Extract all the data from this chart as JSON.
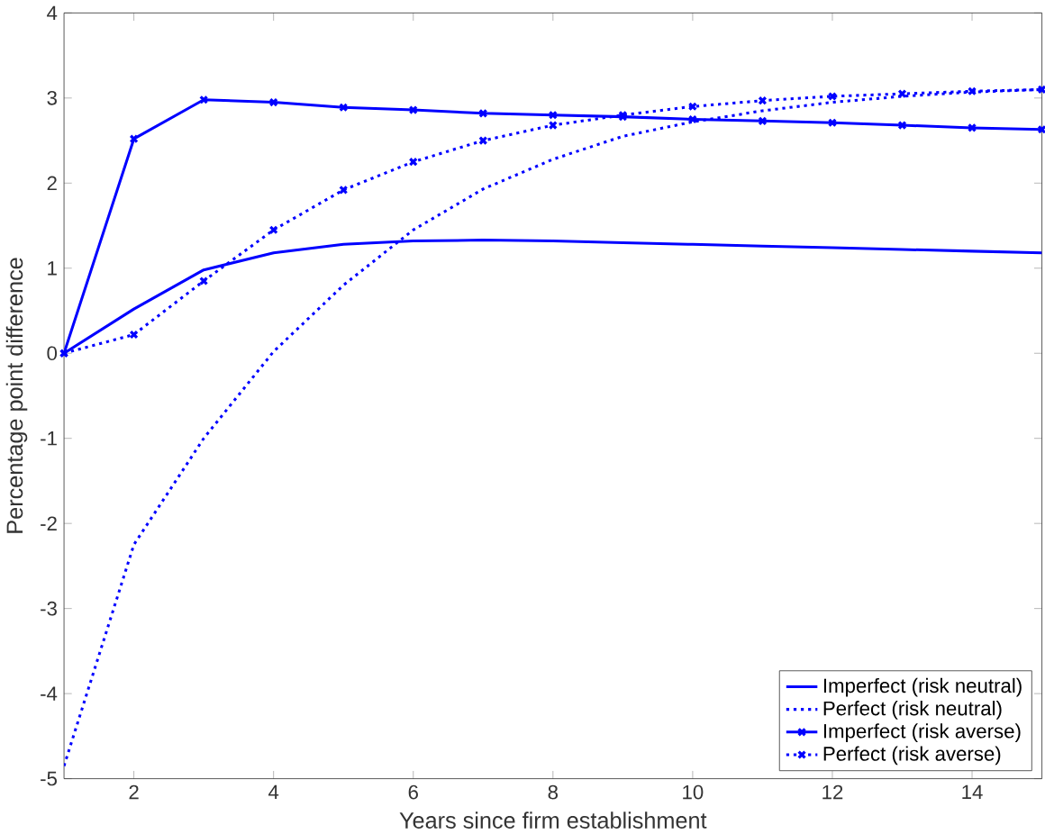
{
  "chart_data": {
    "type": "line",
    "xlabel": "Years since firm establishment",
    "ylabel": "Percentage point difference",
    "x": [
      1,
      2,
      3,
      4,
      5,
      6,
      7,
      8,
      9,
      10,
      11,
      12,
      13,
      14,
      15
    ],
    "xlim": [
      1,
      15
    ],
    "xticks": [
      2,
      4,
      6,
      8,
      10,
      12,
      14
    ],
    "ylim": [
      -5,
      4
    ],
    "yticks": [
      -5,
      -4,
      -3,
      -2,
      -1,
      0,
      1,
      2,
      3,
      4
    ],
    "grid": false,
    "legend": "bottom right",
    "series": [
      {
        "name": "Imperfect (risk neutral)",
        "color": "#0000ff",
        "line_style": "solid",
        "marker": "none",
        "values": [
          0,
          0.52,
          0.98,
          1.18,
          1.28,
          1.32,
          1.33,
          1.32,
          1.3,
          1.28,
          1.26,
          1.24,
          1.22,
          1.2,
          1.18
        ]
      },
      {
        "name": "Perfect (risk neutral)",
        "color": "#0000ff",
        "line_style": "dotted",
        "marker": "none",
        "values": [
          -4.85,
          -2.25,
          -1.0,
          0.02,
          0.8,
          1.45,
          1.93,
          2.28,
          2.55,
          2.72,
          2.85,
          2.95,
          3.02,
          3.07,
          3.1
        ]
      },
      {
        "name": "Imperfect (risk averse)",
        "color": "#0000ff",
        "line_style": "solid",
        "marker": "cross",
        "values": [
          0,
          2.52,
          2.98,
          2.95,
          2.89,
          2.86,
          2.82,
          2.8,
          2.78,
          2.75,
          2.73,
          2.71,
          2.68,
          2.65,
          2.63
        ]
      },
      {
        "name": "Perfect (risk averse)",
        "color": "#0000ff",
        "line_style": "dotted",
        "marker": "cross",
        "values": [
          0,
          0.22,
          0.85,
          1.45,
          1.92,
          2.25,
          2.5,
          2.68,
          2.8,
          2.9,
          2.97,
          3.02,
          3.05,
          3.08,
          3.1
        ]
      }
    ]
  }
}
